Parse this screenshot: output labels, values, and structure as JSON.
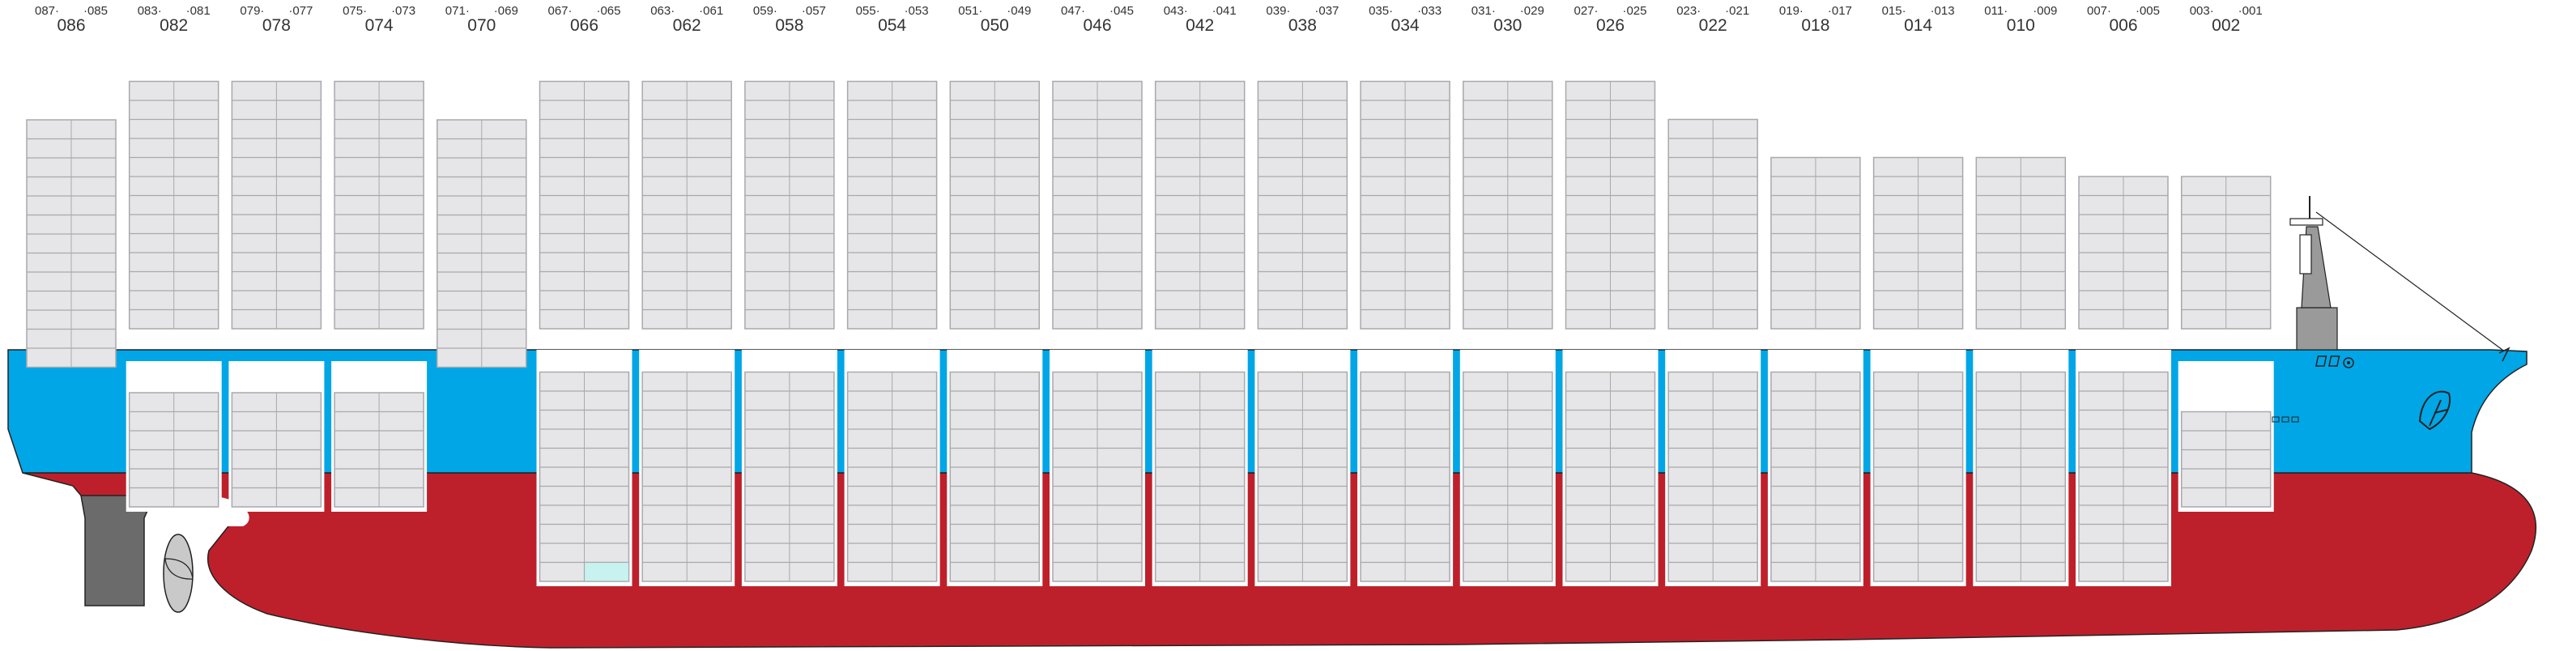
{
  "colors": {
    "hull_upper": "#00a6e6",
    "hull_lower": "#be202b",
    "container_fill": "#e6e6e8",
    "container_stroke": "#a9a9ad",
    "hatch_white": "#ffffff",
    "highlight_cell": "#c8f2ef",
    "outline": "#222222",
    "rudder": "#6b6b6b",
    "propeller": "#c9c9c9",
    "superstructure": "#9a9a9a"
  },
  "bays": [
    {
      "big": "086",
      "left": "087",
      "right": "085"
    },
    {
      "big": "082",
      "left": "083",
      "right": "081"
    },
    {
      "big": "078",
      "left": "079",
      "right": "077"
    },
    {
      "big": "074",
      "left": "075",
      "right": "073"
    },
    {
      "big": "070",
      "left": "071",
      "right": "069"
    },
    {
      "big": "066",
      "left": "067",
      "right": "065"
    },
    {
      "big": "062",
      "left": "063",
      "right": "061"
    },
    {
      "big": "058",
      "left": "059",
      "right": "057"
    },
    {
      "big": "054",
      "left": "055",
      "right": "053"
    },
    {
      "big": "050",
      "left": "051",
      "right": "049"
    },
    {
      "big": "046",
      "left": "047",
      "right": "045"
    },
    {
      "big": "042",
      "left": "043",
      "right": "041"
    },
    {
      "big": "038",
      "left": "039",
      "right": "037"
    },
    {
      "big": "034",
      "left": "035",
      "right": "033"
    },
    {
      "big": "030",
      "left": "031",
      "right": "029"
    },
    {
      "big": "026",
      "left": "027",
      "right": "025"
    },
    {
      "big": "022",
      "left": "023",
      "right": "021"
    },
    {
      "big": "018",
      "left": "019",
      "right": "017"
    },
    {
      "big": "014",
      "left": "015",
      "right": "013"
    },
    {
      "big": "010",
      "left": "011",
      "right": "009"
    },
    {
      "big": "006",
      "left": "007",
      "right": "005"
    },
    {
      "big": "002",
      "left": "003",
      "right": "001"
    }
  ],
  "deck_tiers": [
    13,
    13,
    13,
    13,
    13,
    13,
    13,
    13,
    13,
    13,
    13,
    13,
    13,
    13,
    13,
    13,
    11,
    9,
    9,
    9,
    8,
    8
  ],
  "hold_tiers": [
    0,
    6,
    6,
    6,
    0,
    11,
    11,
    11,
    11,
    11,
    11,
    11,
    11,
    11,
    11,
    11,
    11,
    11,
    11,
    11,
    11,
    5
  ]
}
